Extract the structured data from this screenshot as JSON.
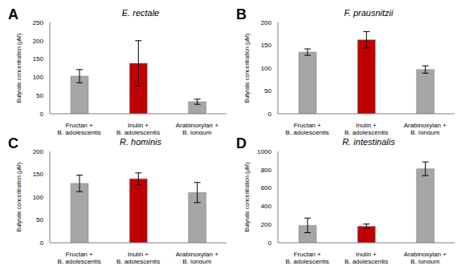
{
  "chart_data": [
    {
      "type": "bar",
      "panel": "A",
      "title": "E. rectale",
      "y_label": "Butyrate concentration (µM)",
      "categories": [
        "Fructan + B. adolescentis",
        "Inulin + B. adolescentis",
        "Arabinoxylan + B. longum"
      ],
      "values": [
        103,
        138,
        33
      ],
      "errors": [
        18,
        62,
        7
      ],
      "colors": [
        "#a6a6a6",
        "#c00000",
        "#a6a6a6"
      ],
      "ylim": [
        0,
        250
      ],
      "yticks": [
        0,
        50,
        100,
        150,
        200,
        250
      ],
      "grid": false
    },
    {
      "type": "bar",
      "panel": "B",
      "title": "F. prausnitzii",
      "y_label": "Butyrate concentration (µM)",
      "categories": [
        "Fructan + B. adolescentis",
        "Inulin + B. adolescentis",
        "Arabinoxylan + B. longum"
      ],
      "values": [
        135,
        162,
        97
      ],
      "errors": [
        7,
        18,
        8
      ],
      "colors": [
        "#a6a6a6",
        "#c00000",
        "#a6a6a6"
      ],
      "ylim": [
        0,
        200
      ],
      "yticks": [
        0,
        50,
        100,
        150,
        200
      ],
      "grid": false
    },
    {
      "type": "bar",
      "panel": "C",
      "title": "R. hominis",
      "y_label": "Butyrate concentration (µM)",
      "categories": [
        "Fructan + B. adolescentis",
        "Inulin + B. adolescentis",
        "Arabinoxylan + B. longum"
      ],
      "values": [
        130,
        140,
        110
      ],
      "errors": [
        18,
        13,
        22
      ],
      "colors": [
        "#a6a6a6",
        "#c00000",
        "#a6a6a6"
      ],
      "ylim": [
        0,
        200
      ],
      "yticks": [
        0,
        50,
        100,
        150,
        200
      ],
      "grid": false
    },
    {
      "type": "bar",
      "panel": "D",
      "title": "R. intestinalis",
      "y_label": "Butyrate concentration (µM)",
      "categories": [
        "Fructan + B. adolescentis",
        "Inulin + B. adolescentis",
        "Arabinoxylan + B. longum"
      ],
      "values": [
        190,
        180,
        810
      ],
      "errors": [
        80,
        25,
        75
      ],
      "colors": [
        "#a6a6a6",
        "#c00000",
        "#a6a6a6"
      ],
      "ylim": [
        0,
        1000
      ],
      "yticks": [
        0,
        200,
        400,
        600,
        800,
        1000
      ],
      "grid": false
    }
  ]
}
